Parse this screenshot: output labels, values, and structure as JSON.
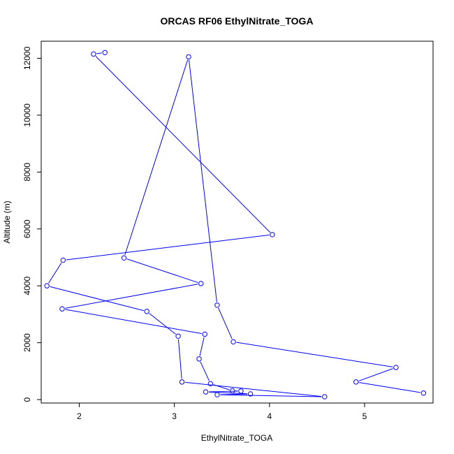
{
  "chart_data": {
    "type": "line",
    "title": "ORCAS RF06 EthylNitrate_TOGA",
    "xlabel": "EthylNitrate_TOGA",
    "ylabel": "Altitude (m)",
    "xlim": [
      1.6,
      5.72
    ],
    "ylim": [
      -120,
      12600
    ],
    "x_ticks": [
      2,
      3,
      4,
      5
    ],
    "y_ticks": [
      0,
      2000,
      4000,
      6000,
      8000,
      10000,
      12000
    ],
    "x_tick_labels": [
      "2",
      "3",
      "4",
      "5"
    ],
    "y_tick_labels": [
      "0",
      "2000",
      "4000",
      "6000",
      "8000",
      "10000",
      "12000"
    ],
    "grid": false,
    "marker": "open-circle",
    "series": [
      {
        "color": "#0000ff",
        "points": [
          {
            "x": 2.27,
            "y": 12200
          },
          {
            "x": 2.15,
            "y": 12150
          },
          {
            "x": 4.03,
            "y": 5800
          },
          {
            "x": 1.83,
            "y": 4900
          },
          {
            "x": 1.66,
            "y": 4000
          },
          {
            "x": 2.71,
            "y": 3100
          },
          {
            "x": 3.04,
            "y": 2230
          },
          {
            "x": 3.08,
            "y": 620
          },
          {
            "x": 4.58,
            "y": 100
          },
          {
            "x": 3.45,
            "y": 170
          },
          {
            "x": 3.8,
            "y": 200
          },
          {
            "x": 3.33,
            "y": 270
          },
          {
            "x": 3.7,
            "y": 300
          },
          {
            "x": 3.61,
            "y": 310
          },
          {
            "x": 3.38,
            "y": 560
          },
          {
            "x": 3.26,
            "y": 1430
          },
          {
            "x": 3.32,
            "y": 2300
          },
          {
            "x": 1.82,
            "y": 3190
          },
          {
            "x": 3.28,
            "y": 4080
          },
          {
            "x": 2.47,
            "y": 4980
          },
          {
            "x": 3.15,
            "y": 12050
          },
          {
            "x": 3.45,
            "y": 3320
          },
          {
            "x": 3.62,
            "y": 2030
          },
          {
            "x": 5.33,
            "y": 1130
          },
          {
            "x": 4.91,
            "y": 620
          },
          {
            "x": 5.62,
            "y": 230
          }
        ]
      }
    ]
  }
}
